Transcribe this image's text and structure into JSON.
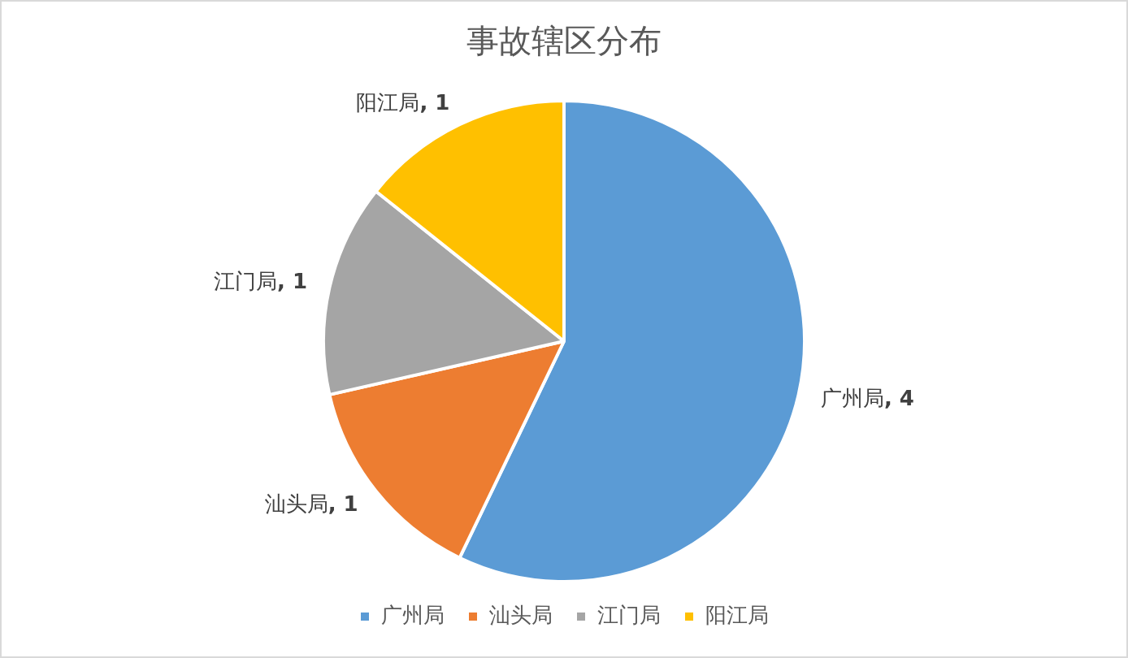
{
  "chart_data": {
    "type": "pie",
    "title": "事故辖区分布",
    "categories": [
      "广州局",
      "汕头局",
      "江门局",
      "阳江局"
    ],
    "values": [
      4,
      1,
      1,
      1
    ],
    "value_labels": [
      ", 4",
      ", 1",
      ", 1",
      ", 1"
    ],
    "colors": [
      "#5b9bd5",
      "#ed7d31",
      "#a5a5a5",
      "#ffc000"
    ],
    "legend": "bottom"
  }
}
